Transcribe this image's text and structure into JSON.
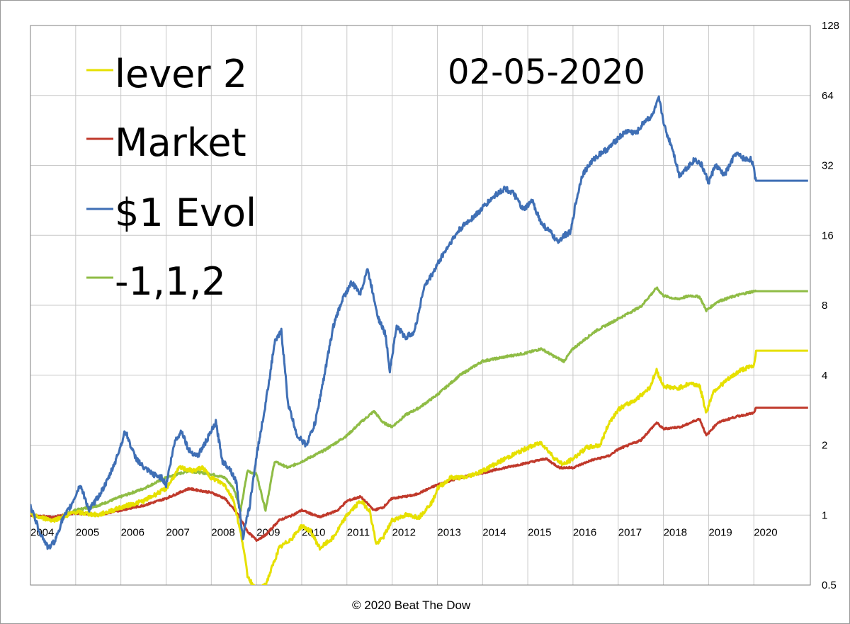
{
  "chart_data": {
    "type": "line",
    "title": "02-05-2020",
    "footer": "© 2020   Beat The Dow",
    "y_scale": "log2",
    "ylim": [
      0.5,
      128
    ],
    "y_ticks": [
      {
        "value": 0.5,
        "label": "0.5"
      },
      {
        "value": 1,
        "label": "1"
      },
      {
        "value": 2,
        "label": "2"
      },
      {
        "value": 4,
        "label": "4"
      },
      {
        "value": 8,
        "label": "8"
      },
      {
        "value": 16,
        "label": "16"
      },
      {
        "value": 32,
        "label": "32"
      },
      {
        "value": 64,
        "label": "64"
      },
      {
        "value": 128,
        "label": "128"
      }
    ],
    "xlim": [
      2004.0,
      2021.25
    ],
    "x_ticks": [
      "2004",
      "2005",
      "2006",
      "2007",
      "2008",
      "2009",
      "2010",
      "2011",
      "2012",
      "2013",
      "2014",
      "2015",
      "2016",
      "2017",
      "2018",
      "2019",
      "2020"
    ],
    "grid": true,
    "legend_position": "top-left",
    "series": [
      {
        "name": "lever 2",
        "color": "#e6e000",
        "points": [
          [
            2004.0,
            1.0
          ],
          [
            2004.5,
            0.95
          ],
          [
            2005.0,
            1.03
          ],
          [
            2005.5,
            1.0
          ],
          [
            2006.0,
            1.08
          ],
          [
            2006.5,
            1.15
          ],
          [
            2007.0,
            1.3
          ],
          [
            2007.3,
            1.6
          ],
          [
            2007.6,
            1.55
          ],
          [
            2007.8,
            1.6
          ],
          [
            2008.0,
            1.45
          ],
          [
            2008.3,
            1.35
          ],
          [
            2008.5,
            1.15
          ],
          [
            2008.7,
            0.75
          ],
          [
            2008.8,
            0.55
          ],
          [
            2009.0,
            0.47
          ],
          [
            2009.2,
            0.5
          ],
          [
            2009.5,
            0.72
          ],
          [
            2009.8,
            0.8
          ],
          [
            2010.0,
            0.9
          ],
          [
            2010.2,
            0.85
          ],
          [
            2010.4,
            0.72
          ],
          [
            2010.7,
            0.8
          ],
          [
            2011.0,
            1.0
          ],
          [
            2011.3,
            1.15
          ],
          [
            2011.5,
            1.05
          ],
          [
            2011.65,
            0.75
          ],
          [
            2011.8,
            0.8
          ],
          [
            2012.0,
            0.95
          ],
          [
            2012.3,
            1.0
          ],
          [
            2012.6,
            0.98
          ],
          [
            2012.9,
            1.15
          ],
          [
            2013.0,
            1.3
          ],
          [
            2013.3,
            1.45
          ],
          [
            2013.6,
            1.45
          ],
          [
            2014.0,
            1.55
          ],
          [
            2014.5,
            1.75
          ],
          [
            2015.0,
            1.95
          ],
          [
            2015.3,
            2.05
          ],
          [
            2015.6,
            1.75
          ],
          [
            2015.8,
            1.65
          ],
          [
            2016.0,
            1.75
          ],
          [
            2016.3,
            1.95
          ],
          [
            2016.6,
            2.0
          ],
          [
            2016.8,
            2.5
          ],
          [
            2017.0,
            2.85
          ],
          [
            2017.4,
            3.15
          ],
          [
            2017.7,
            3.55
          ],
          [
            2017.85,
            4.2
          ],
          [
            2018.0,
            3.6
          ],
          [
            2018.3,
            3.5
          ],
          [
            2018.6,
            3.7
          ],
          [
            2018.8,
            3.6
          ],
          [
            2018.95,
            2.75
          ],
          [
            2019.1,
            3.4
          ],
          [
            2019.4,
            3.8
          ],
          [
            2019.7,
            4.2
          ],
          [
            2020.0,
            4.4
          ],
          [
            2020.05,
            5.1
          ],
          [
            2021.2,
            5.1
          ]
        ]
      },
      {
        "name": "Market",
        "color": "#c0392b",
        "points": [
          [
            2004.0,
            1.0
          ],
          [
            2004.5,
            0.98
          ],
          [
            2005.0,
            1.02
          ],
          [
            2005.5,
            1.0
          ],
          [
            2006.0,
            1.05
          ],
          [
            2006.5,
            1.1
          ],
          [
            2007.0,
            1.18
          ],
          [
            2007.5,
            1.3
          ],
          [
            2008.0,
            1.25
          ],
          [
            2008.3,
            1.18
          ],
          [
            2008.6,
            1.0
          ],
          [
            2008.8,
            0.85
          ],
          [
            2009.0,
            0.78
          ],
          [
            2009.2,
            0.82
          ],
          [
            2009.5,
            0.95
          ],
          [
            2009.8,
            1.0
          ],
          [
            2010.0,
            1.05
          ],
          [
            2010.4,
            0.98
          ],
          [
            2010.8,
            1.05
          ],
          [
            2011.0,
            1.15
          ],
          [
            2011.3,
            1.2
          ],
          [
            2011.6,
            1.05
          ],
          [
            2011.8,
            1.08
          ],
          [
            2012.0,
            1.18
          ],
          [
            2012.5,
            1.22
          ],
          [
            2013.0,
            1.35
          ],
          [
            2013.5,
            1.45
          ],
          [
            2014.0,
            1.52
          ],
          [
            2014.5,
            1.6
          ],
          [
            2015.0,
            1.68
          ],
          [
            2015.4,
            1.75
          ],
          [
            2015.7,
            1.6
          ],
          [
            2016.0,
            1.6
          ],
          [
            2016.4,
            1.72
          ],
          [
            2016.8,
            1.8
          ],
          [
            2017.0,
            1.92
          ],
          [
            2017.5,
            2.1
          ],
          [
            2017.85,
            2.5
          ],
          [
            2018.0,
            2.35
          ],
          [
            2018.4,
            2.4
          ],
          [
            2018.8,
            2.6
          ],
          [
            2018.95,
            2.2
          ],
          [
            2019.2,
            2.5
          ],
          [
            2019.6,
            2.65
          ],
          [
            2020.0,
            2.75
          ],
          [
            2020.05,
            2.9
          ],
          [
            2021.2,
            2.9
          ]
        ]
      },
      {
        "name": "$1 Evol",
        "color": "#3f6fb5",
        "points": [
          [
            2004.0,
            1.1
          ],
          [
            2004.2,
            0.85
          ],
          [
            2004.4,
            0.72
          ],
          [
            2004.55,
            0.78
          ],
          [
            2004.7,
            0.95
          ],
          [
            2004.9,
            1.1
          ],
          [
            2005.1,
            1.35
          ],
          [
            2005.3,
            1.05
          ],
          [
            2005.5,
            1.2
          ],
          [
            2005.7,
            1.4
          ],
          [
            2005.9,
            1.75
          ],
          [
            2006.1,
            2.3
          ],
          [
            2006.3,
            1.8
          ],
          [
            2006.5,
            1.6
          ],
          [
            2006.7,
            1.5
          ],
          [
            2006.9,
            1.45
          ],
          [
            2007.0,
            1.35
          ],
          [
            2007.2,
            2.1
          ],
          [
            2007.35,
            2.3
          ],
          [
            2007.5,
            1.9
          ],
          [
            2007.7,
            1.8
          ],
          [
            2007.9,
            2.1
          ],
          [
            2008.1,
            2.5
          ],
          [
            2008.25,
            1.7
          ],
          [
            2008.4,
            1.6
          ],
          [
            2008.55,
            1.4
          ],
          [
            2008.7,
            0.8
          ],
          [
            2008.85,
            1.1
          ],
          [
            2009.0,
            1.8
          ],
          [
            2009.2,
            3.0
          ],
          [
            2009.4,
            5.5
          ],
          [
            2009.55,
            6.2
          ],
          [
            2009.7,
            3.0
          ],
          [
            2009.9,
            2.2
          ],
          [
            2010.1,
            2.0
          ],
          [
            2010.3,
            2.5
          ],
          [
            2010.5,
            4.0
          ],
          [
            2010.7,
            6.5
          ],
          [
            2010.9,
            8.5
          ],
          [
            2011.1,
            10.0
          ],
          [
            2011.3,
            9.0
          ],
          [
            2011.45,
            11.5
          ],
          [
            2011.55,
            9.5
          ],
          [
            2011.7,
            7.0
          ],
          [
            2011.85,
            6.0
          ],
          [
            2011.95,
            4.2
          ],
          [
            2012.1,
            6.5
          ],
          [
            2012.3,
            5.8
          ],
          [
            2012.5,
            6.2
          ],
          [
            2012.7,
            9.5
          ],
          [
            2012.9,
            11.0
          ],
          [
            2013.1,
            13.0
          ],
          [
            2013.3,
            15.0
          ],
          [
            2013.5,
            17.0
          ],
          [
            2013.7,
            18.5
          ],
          [
            2013.9,
            20.0
          ],
          [
            2014.1,
            22.0
          ],
          [
            2014.3,
            24.0
          ],
          [
            2014.5,
            25.5
          ],
          [
            2014.7,
            24.0
          ],
          [
            2014.9,
            20.5
          ],
          [
            2015.1,
            22.5
          ],
          [
            2015.3,
            18.0
          ],
          [
            2015.5,
            16.5
          ],
          [
            2015.65,
            15.0
          ],
          [
            2015.8,
            16.0
          ],
          [
            2015.95,
            16.5
          ],
          [
            2016.05,
            21.5
          ],
          [
            2016.2,
            29.0
          ],
          [
            2016.4,
            33.0
          ],
          [
            2016.6,
            36.0
          ],
          [
            2016.8,
            38.0
          ],
          [
            2017.0,
            42.0
          ],
          [
            2017.2,
            45.0
          ],
          [
            2017.4,
            44.0
          ],
          [
            2017.6,
            50.0
          ],
          [
            2017.75,
            52.0
          ],
          [
            2017.9,
            62.0
          ],
          [
            2018.05,
            45.0
          ],
          [
            2018.2,
            38.0
          ],
          [
            2018.35,
            29.0
          ],
          [
            2018.5,
            31.0
          ],
          [
            2018.7,
            34.0
          ],
          [
            2018.85,
            32.0
          ],
          [
            2019.0,
            27.0
          ],
          [
            2019.15,
            32.0
          ],
          [
            2019.35,
            29.0
          ],
          [
            2019.6,
            36.0
          ],
          [
            2019.8,
            34.0
          ],
          [
            2019.95,
            34.0
          ],
          [
            2020.05,
            27.5
          ],
          [
            2021.2,
            27.5
          ]
        ]
      },
      {
        "name": "-1,1,2",
        "color": "#8fbc45",
        "points": [
          [
            2004.0,
            1.0
          ],
          [
            2004.5,
            0.96
          ],
          [
            2005.0,
            1.05
          ],
          [
            2005.5,
            1.1
          ],
          [
            2006.0,
            1.2
          ],
          [
            2006.5,
            1.3
          ],
          [
            2007.0,
            1.45
          ],
          [
            2007.5,
            1.55
          ],
          [
            2008.0,
            1.5
          ],
          [
            2008.3,
            1.45
          ],
          [
            2008.5,
            1.3
          ],
          [
            2008.65,
            1.05
          ],
          [
            2008.8,
            1.55
          ],
          [
            2009.0,
            1.5
          ],
          [
            2009.2,
            1.05
          ],
          [
            2009.4,
            1.7
          ],
          [
            2009.7,
            1.6
          ],
          [
            2010.0,
            1.7
          ],
          [
            2010.5,
            1.9
          ],
          [
            2011.0,
            2.2
          ],
          [
            2011.3,
            2.5
          ],
          [
            2011.6,
            2.8
          ],
          [
            2011.8,
            2.5
          ],
          [
            2012.0,
            2.4
          ],
          [
            2012.3,
            2.7
          ],
          [
            2012.6,
            2.9
          ],
          [
            2013.0,
            3.3
          ],
          [
            2013.5,
            4.0
          ],
          [
            2014.0,
            4.6
          ],
          [
            2014.5,
            4.8
          ],
          [
            2015.0,
            5.0
          ],
          [
            2015.3,
            5.2
          ],
          [
            2015.6,
            4.8
          ],
          [
            2015.8,
            4.6
          ],
          [
            2016.0,
            5.2
          ],
          [
            2016.5,
            6.2
          ],
          [
            2017.0,
            7.0
          ],
          [
            2017.5,
            7.9
          ],
          [
            2017.85,
            9.5
          ],
          [
            2018.0,
            8.8
          ],
          [
            2018.3,
            8.5
          ],
          [
            2018.6,
            8.8
          ],
          [
            2018.8,
            8.7
          ],
          [
            2018.95,
            7.6
          ],
          [
            2019.2,
            8.3
          ],
          [
            2019.6,
            8.8
          ],
          [
            2020.0,
            9.2
          ],
          [
            2020.05,
            9.2
          ],
          [
            2021.2,
            9.2
          ]
        ]
      }
    ]
  }
}
